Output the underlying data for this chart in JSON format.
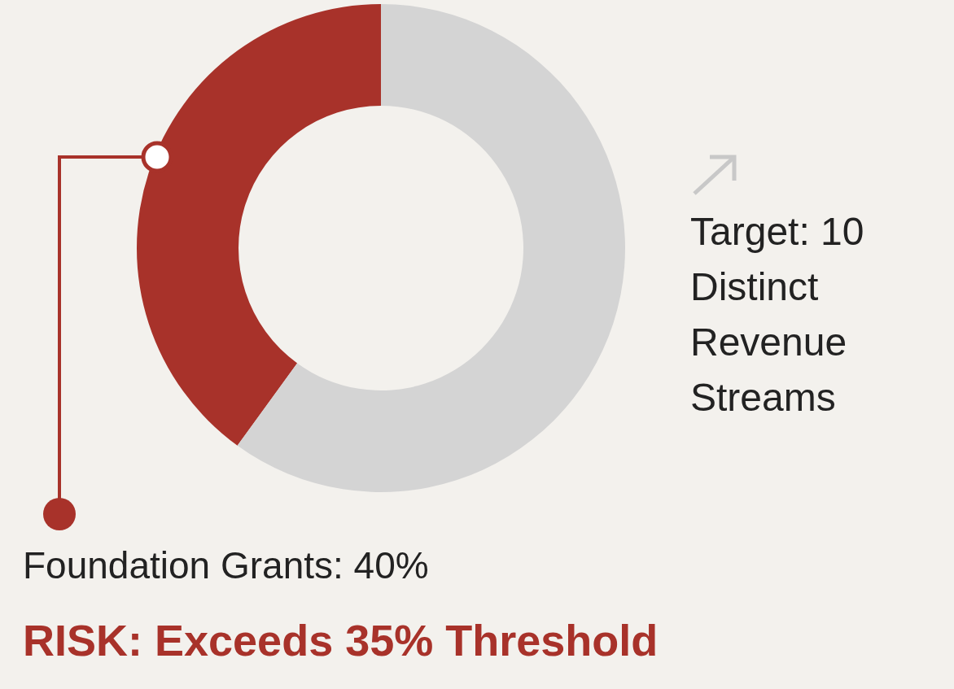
{
  "chart_data": {
    "type": "donut",
    "categories": [
      "Foundation Grants",
      null
    ],
    "values": [
      40,
      60
    ],
    "colors": [
      "#a8322a",
      "#d4d4d4"
    ],
    "value_labels": [
      "40%",
      null
    ],
    "annotations": [
      "Target: 10 Distinct Revenue Streams",
      "RISK: Exceeds 35% Threshold"
    ]
  }
}
